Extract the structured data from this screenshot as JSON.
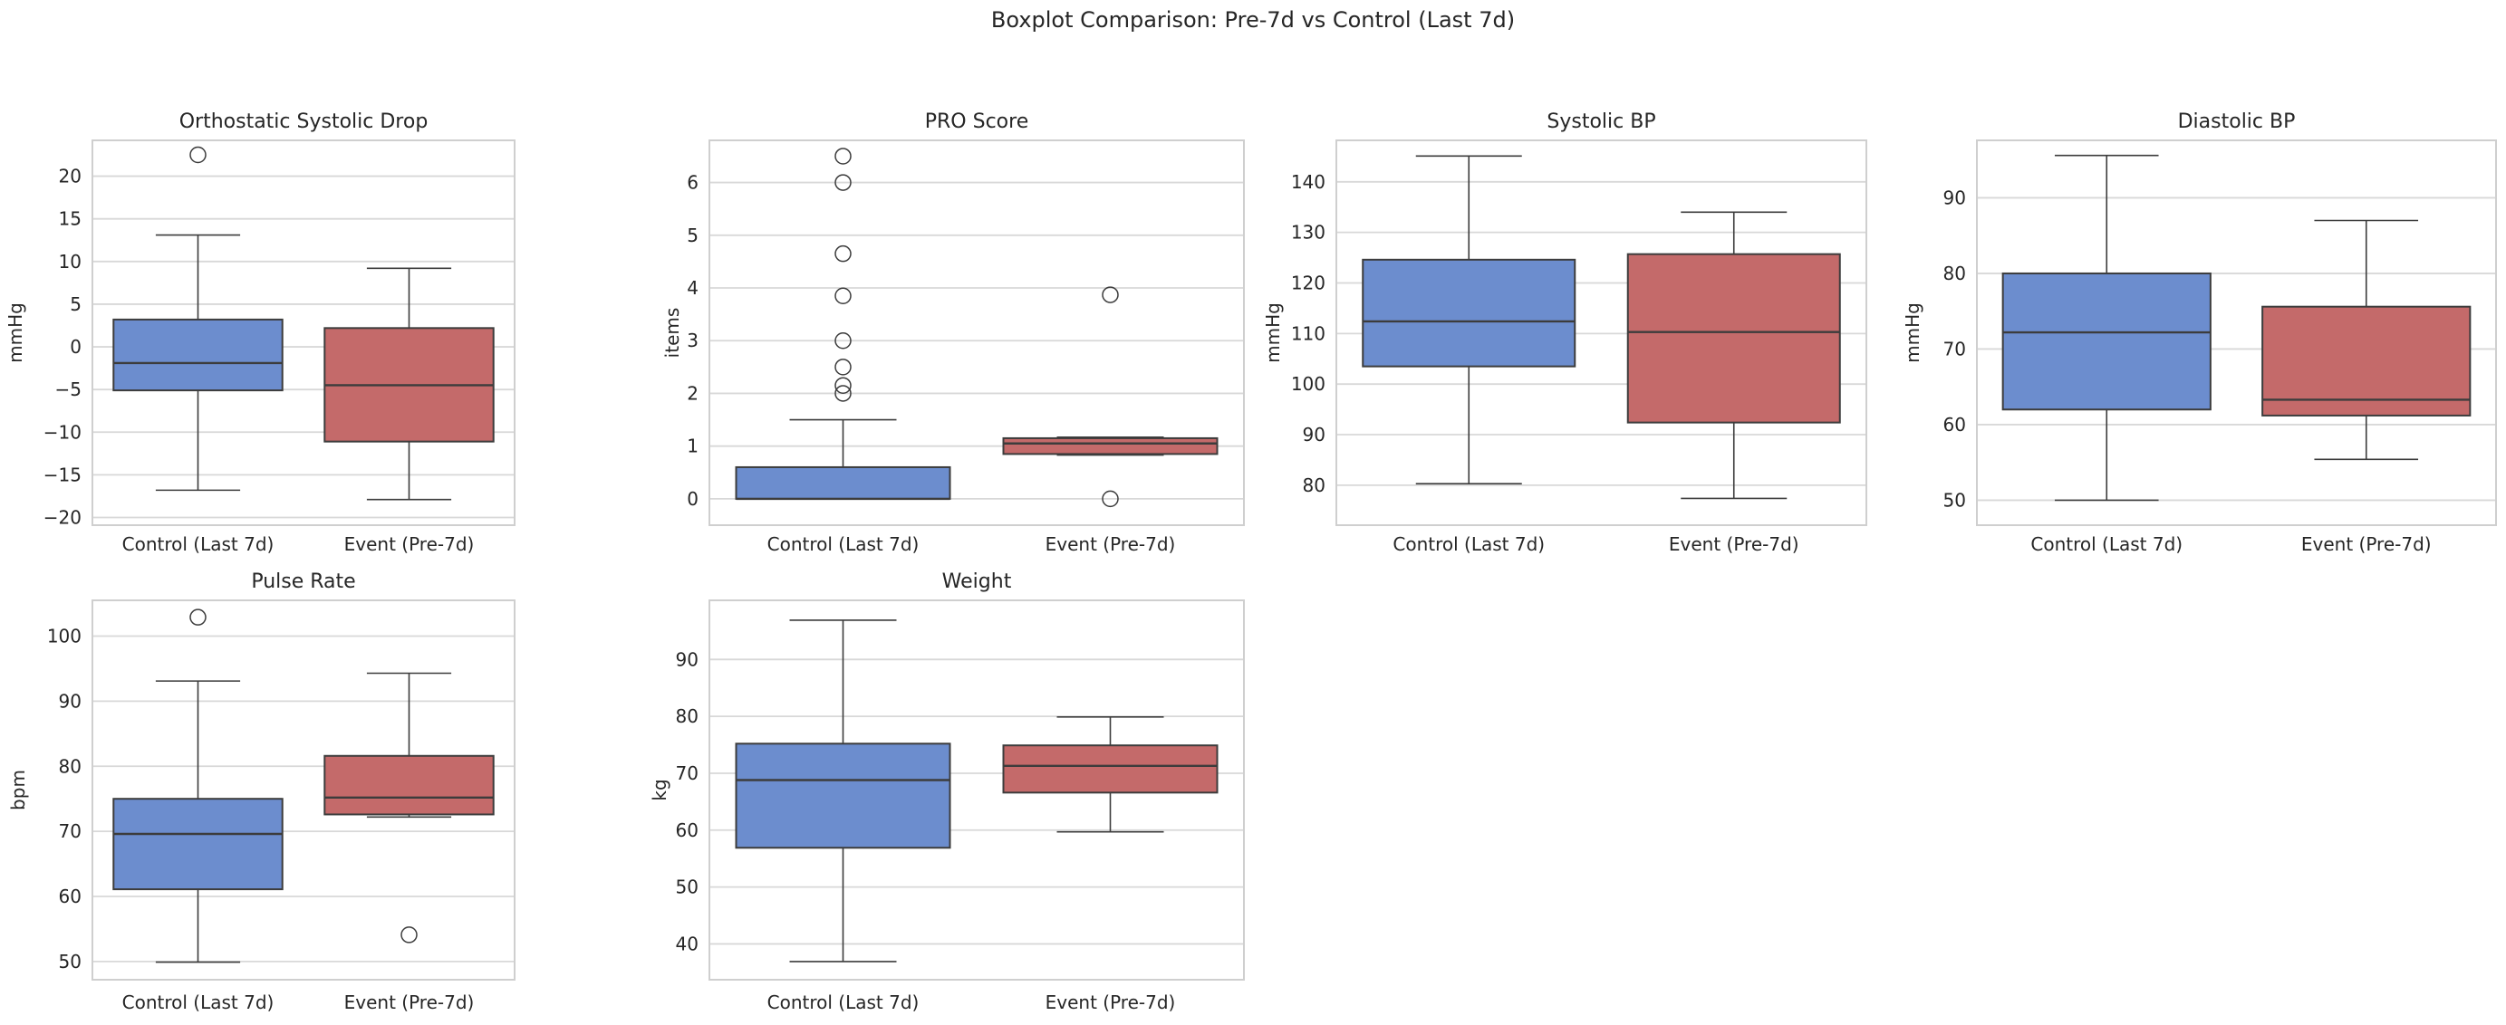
{
  "figure": {
    "title": "Boxplot Comparison: Pre-7d vs Control (Last 7d)",
    "background": "#ffffff",
    "text_color": "#262626"
  },
  "palette": {
    "control_fill": "#6C8DCE",
    "event_fill": "#C46A6A",
    "line_color": "#3C3C3C",
    "grid_color": "#D8D8D8",
    "spine_color": "#CFCFCF"
  },
  "categories": [
    "Control (Last 7d)",
    "Event (Pre-7d)"
  ],
  "chart_data": [
    {
      "type": "boxplot",
      "title": "Orthostatic Systolic Drop",
      "ylabel": "mmHg",
      "ylim": [
        -20.9,
        24.2
      ],
      "yticks": [
        20,
        15,
        10,
        5,
        0,
        -5,
        -10,
        -15,
        -20
      ],
      "grid": true,
      "series": [
        {
          "name": "Control (Last 7d)",
          "whislo": -16.8,
          "q1": -5.1,
          "med": -1.9,
          "q3": 3.2,
          "whishi": 13.1,
          "fliers": [
            22.5
          ]
        },
        {
          "name": "Event (Pre-7d)",
          "whislo": -17.9,
          "q1": -11.1,
          "med": -4.5,
          "q3": 2.2,
          "whishi": 9.2,
          "fliers": []
        }
      ]
    },
    {
      "type": "boxplot",
      "title": "PRO Score",
      "ylabel": "items",
      "ylim": [
        -0.5,
        6.8
      ],
      "yticks": [
        0,
        1,
        2,
        3,
        4,
        5,
        6
      ],
      "grid": true,
      "series": [
        {
          "name": "Control (Last 7d)",
          "whislo": 0,
          "q1": 0,
          "med": 0,
          "q3": 0.6,
          "whishi": 1.5,
          "fliers": [
            2.0,
            2.15,
            2.5,
            3.0,
            3.85,
            4.65,
            6.0,
            6.5
          ]
        },
        {
          "name": "Event (Pre-7d)",
          "whislo": 0.83,
          "q1": 0.85,
          "med": 1.05,
          "q3": 1.15,
          "whishi": 1.17,
          "fliers": [
            3.87,
            0.0
          ]
        }
      ]
    },
    {
      "type": "boxplot",
      "title": "Systolic BP",
      "ylabel": "mmHg",
      "ylim": [
        72.1,
        148.2
      ],
      "yticks": [
        140,
        130,
        120,
        110,
        100,
        90,
        80
      ],
      "grid": true,
      "series": [
        {
          "name": "Control (Last 7d)",
          "whislo": 80.3,
          "q1": 103.5,
          "med": 112.4,
          "q3": 124.6,
          "whishi": 145.1,
          "fliers": []
        },
        {
          "name": "Event (Pre-7d)",
          "whislo": 77.4,
          "q1": 92.4,
          "med": 110.3,
          "q3": 125.7,
          "whishi": 134.0,
          "fliers": []
        }
      ]
    },
    {
      "type": "boxplot",
      "title": "Diastolic BP",
      "ylabel": "mmHg",
      "ylim": [
        46.7,
        97.6
      ],
      "yticks": [
        90,
        80,
        70,
        60,
        50
      ],
      "grid": true,
      "series": [
        {
          "name": "Control (Last 7d)",
          "whislo": 50.0,
          "q1": 62.0,
          "med": 72.2,
          "q3": 80.0,
          "whishi": 95.6,
          "fliers": []
        },
        {
          "name": "Event (Pre-7d)",
          "whislo": 55.4,
          "q1": 61.2,
          "med": 63.3,
          "q3": 75.6,
          "whishi": 87.0,
          "fliers": []
        }
      ]
    },
    {
      "type": "boxplot",
      "title": "Pulse Rate",
      "ylabel": "bpm",
      "ylim": [
        47.2,
        105.5
      ],
      "yticks": [
        100,
        90,
        80,
        70,
        60,
        50
      ],
      "grid": true,
      "series": [
        {
          "name": "Control (Last 7d)",
          "whislo": 49.9,
          "q1": 61.1,
          "med": 69.6,
          "q3": 75.0,
          "whishi": 93.1,
          "fliers": [
            102.9
          ]
        },
        {
          "name": "Event (Pre-7d)",
          "whislo": 72.2,
          "q1": 72.6,
          "med": 75.2,
          "q3": 81.6,
          "whishi": 94.3,
          "fliers": [
            54.1
          ]
        }
      ]
    },
    {
      "type": "boxplot",
      "title": "Weight",
      "ylabel": "kg",
      "ylim": [
        33.7,
        100.4
      ],
      "yticks": [
        90,
        80,
        70,
        60,
        50,
        40
      ],
      "grid": true,
      "series": [
        {
          "name": "Control (Last 7d)",
          "whislo": 36.9,
          "q1": 56.9,
          "med": 68.8,
          "q3": 75.2,
          "whishi": 96.9,
          "fliers": []
        },
        {
          "name": "Event (Pre-7d)",
          "whislo": 59.7,
          "q1": 66.6,
          "med": 71.3,
          "q3": 74.9,
          "whishi": 79.9,
          "fliers": []
        }
      ]
    }
  ]
}
